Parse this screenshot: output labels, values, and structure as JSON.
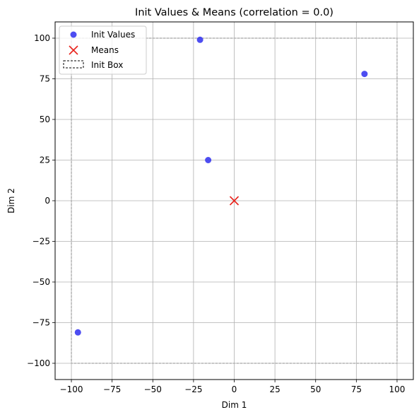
{
  "chart_data": {
    "type": "scatter",
    "title": "Init Values & Means (correlation = 0.0)",
    "xlabel": "Dim 1",
    "ylabel": "Dim 2",
    "xlim": [
      -110,
      110
    ],
    "ylim": [
      -110,
      110
    ],
    "xticks": [
      -100,
      -75,
      -50,
      -25,
      0,
      25,
      50,
      75,
      100
    ],
    "yticks": [
      -100,
      -75,
      -50,
      -25,
      0,
      25,
      50,
      75,
      100
    ],
    "grid": true,
    "legend_position": "top-left",
    "series": [
      {
        "name": "Init Values",
        "marker": "circle",
        "color": "#3a3af0",
        "points": [
          {
            "x": -21,
            "y": 99
          },
          {
            "x": 80,
            "y": 78
          },
          {
            "x": -16,
            "y": 25
          },
          {
            "x": -96,
            "y": -81
          }
        ]
      },
      {
        "name": "Means",
        "marker": "x",
        "color": "#e8231c",
        "points": [
          {
            "x": 0,
            "y": 0
          }
        ]
      }
    ],
    "box": {
      "name": "Init Box",
      "x_min": -100,
      "x_max": 100,
      "y_min": -100,
      "y_max": 100,
      "style": "dashed",
      "color": "#b3b3b3",
      "legend_color": "#000000"
    }
  }
}
